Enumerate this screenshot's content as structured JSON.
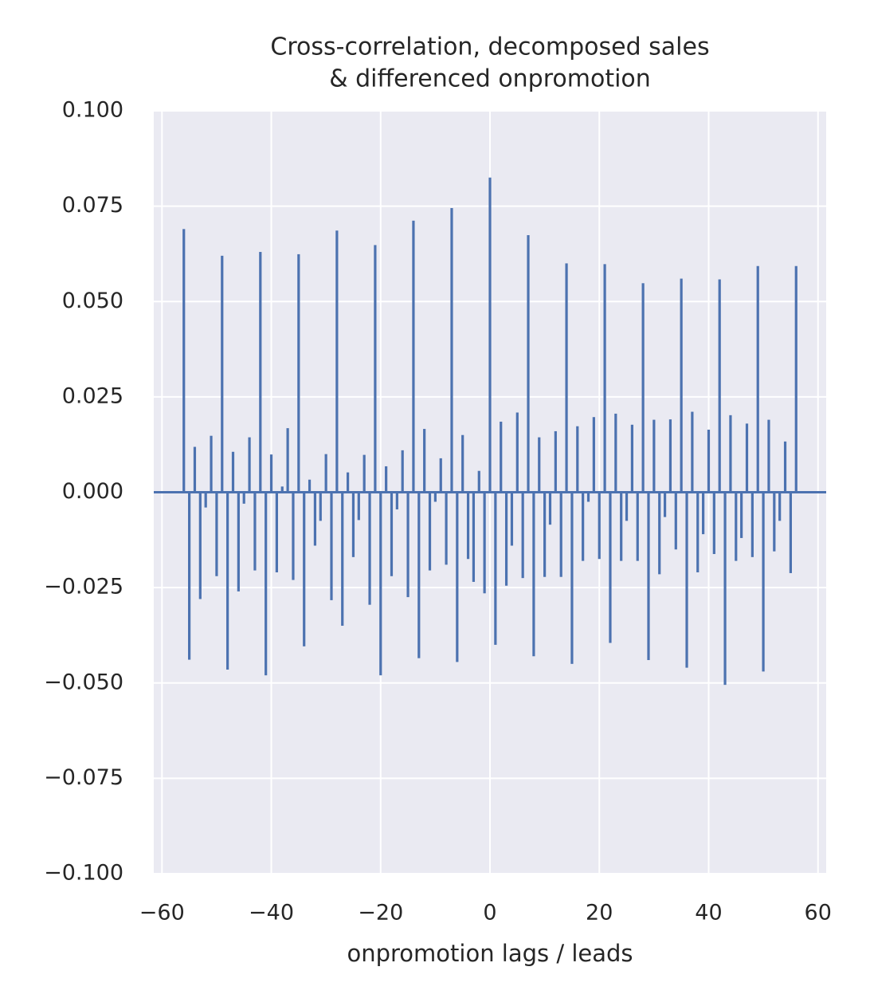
{
  "chart_data": {
    "type": "xcorr",
    "title": [
      "Cross-correlation, decomposed sales",
      "& differenced onpromotion"
    ],
    "x_label": "onpromotion lags / leads",
    "x": [
      -56,
      -55,
      -54,
      -53,
      -52,
      -51,
      -50,
      -49,
      -48,
      -47,
      -46,
      -45,
      -44,
      -43,
      -42,
      -41,
      -40,
      -39,
      -38,
      -37,
      -36,
      -35,
      -34,
      -33,
      -32,
      -31,
      -30,
      -29,
      -28,
      -27,
      -26,
      -25,
      -24,
      -23,
      -22,
      -21,
      -20,
      -19,
      -18,
      -17,
      -16,
      -15,
      -14,
      -13,
      -12,
      -11,
      -10,
      -9,
      -8,
      -7,
      -6,
      -5,
      -4,
      -3,
      -2,
      -1,
      0,
      1,
      2,
      3,
      4,
      5,
      6,
      7,
      8,
      9,
      10,
      11,
      12,
      13,
      14,
      15,
      16,
      17,
      18,
      19,
      20,
      21,
      22,
      23,
      24,
      25,
      26,
      27,
      28,
      29,
      30,
      31,
      32,
      33,
      34,
      35,
      36,
      37,
      38,
      39,
      40,
      41,
      42,
      43,
      44,
      45,
      46,
      47,
      48,
      49,
      50,
      51,
      52,
      53,
      54,
      55,
      56
    ],
    "values": [
      0.069,
      -0.0439,
      0.0119,
      -0.028,
      -0.004,
      0.0148,
      -0.022,
      0.062,
      -0.0465,
      0.0106,
      -0.026,
      -0.003,
      0.0144,
      -0.0205,
      0.063,
      -0.048,
      0.0099,
      -0.021,
      0.0015,
      0.0168,
      -0.023,
      0.0624,
      -0.0404,
      0.0033,
      -0.014,
      -0.0075,
      0.01,
      -0.0283,
      0.0686,
      -0.035,
      0.0052,
      -0.017,
      -0.0073,
      0.0098,
      -0.0295,
      0.0648,
      -0.048,
      0.0068,
      -0.022,
      -0.0045,
      0.011,
      -0.0275,
      0.0712,
      -0.0435,
      0.0166,
      -0.0205,
      -0.0025,
      0.0089,
      -0.019,
      0.0745,
      -0.0445,
      0.015,
      -0.0175,
      -0.0235,
      0.0056,
      -0.0265,
      0.0825,
      -0.04,
      0.0185,
      -0.0245,
      -0.014,
      0.0209,
      -0.0225,
      0.0674,
      -0.043,
      0.0144,
      -0.0222,
      -0.0085,
      0.016,
      -0.0222,
      0.06,
      -0.045,
      0.0173,
      -0.018,
      -0.0025,
      0.0197,
      -0.0175,
      0.0598,
      -0.0395,
      0.0206,
      -0.018,
      -0.0075,
      0.0177,
      -0.018,
      0.0548,
      -0.044,
      0.019,
      -0.0215,
      -0.0065,
      0.0191,
      -0.015,
      0.056,
      -0.046,
      0.0211,
      -0.021,
      -0.011,
      0.0164,
      -0.0162,
      0.0558,
      -0.0505,
      0.0202,
      -0.018,
      -0.012,
      0.018,
      -0.017,
      0.0593,
      -0.047,
      0.019,
      -0.0155,
      -0.0075,
      0.0133,
      -0.0212,
      0.0593
    ],
    "color": "#4c72b0",
    "xlim": [
      -61.5,
      61.5
    ],
    "ylim": [
      -0.1,
      0.1
    ],
    "xticks": [
      {
        "value": -60,
        "label": "−60"
      },
      {
        "value": -40,
        "label": "−40"
      },
      {
        "value": -20,
        "label": "−20"
      },
      0,
      20,
      40,
      60
    ],
    "yticks": [
      {
        "value": -0.1,
        "label": "−0.100"
      },
      {
        "value": -0.075,
        "label": "−0.075"
      },
      {
        "value": -0.05,
        "label": "−0.050"
      },
      {
        "value": -0.025,
        "label": "−0.025"
      },
      {
        "value": 0,
        "label": "0.000"
      },
      {
        "value": 0.025,
        "label": "0.025"
      },
      {
        "value": 0.05,
        "label": "0.050"
      },
      {
        "value": 0.075,
        "label": "0.075"
      },
      {
        "value": 0.1,
        "label": "0.100"
      }
    ],
    "grid": true
  }
}
